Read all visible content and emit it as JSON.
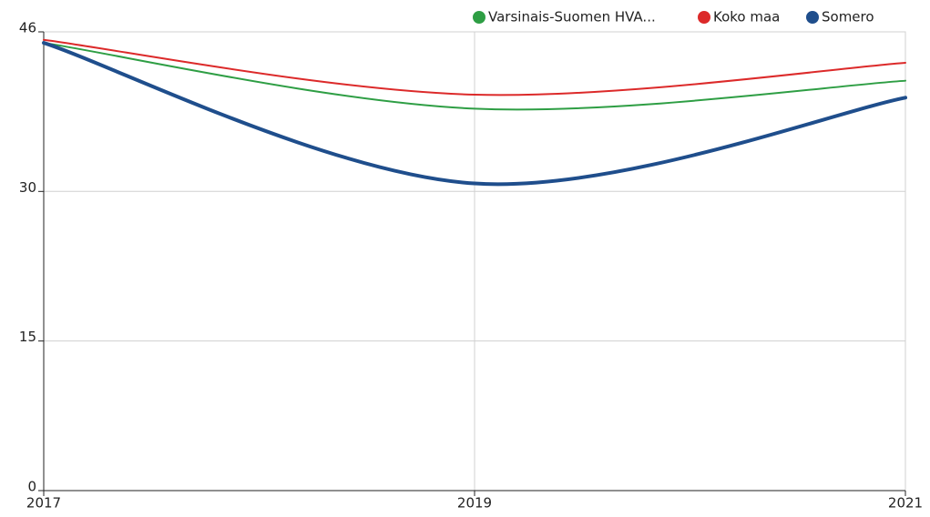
{
  "chart_data": {
    "type": "line",
    "x": [
      2017,
      2019,
      2021
    ],
    "xlim": [
      2017,
      2021
    ],
    "xticks": [
      2017,
      2019,
      2021
    ],
    "ylim": [
      0,
      46
    ],
    "yticks": [
      0,
      15,
      30,
      46
    ],
    "grid": true,
    "legend": "top-right",
    "smooth": true,
    "series": [
      {
        "name": "Varsinais-Suomen HVA...",
        "color": "#2e9e44",
        "values": [
          44.9,
          38.3,
          41.1
        ]
      },
      {
        "name": "Koko maa",
        "color": "#dc2a2a",
        "values": [
          45.2,
          39.7,
          42.9
        ]
      },
      {
        "name": "Somero",
        "color": "#1f4e8c",
        "values": [
          44.9,
          30.8,
          39.4
        ]
      }
    ]
  }
}
